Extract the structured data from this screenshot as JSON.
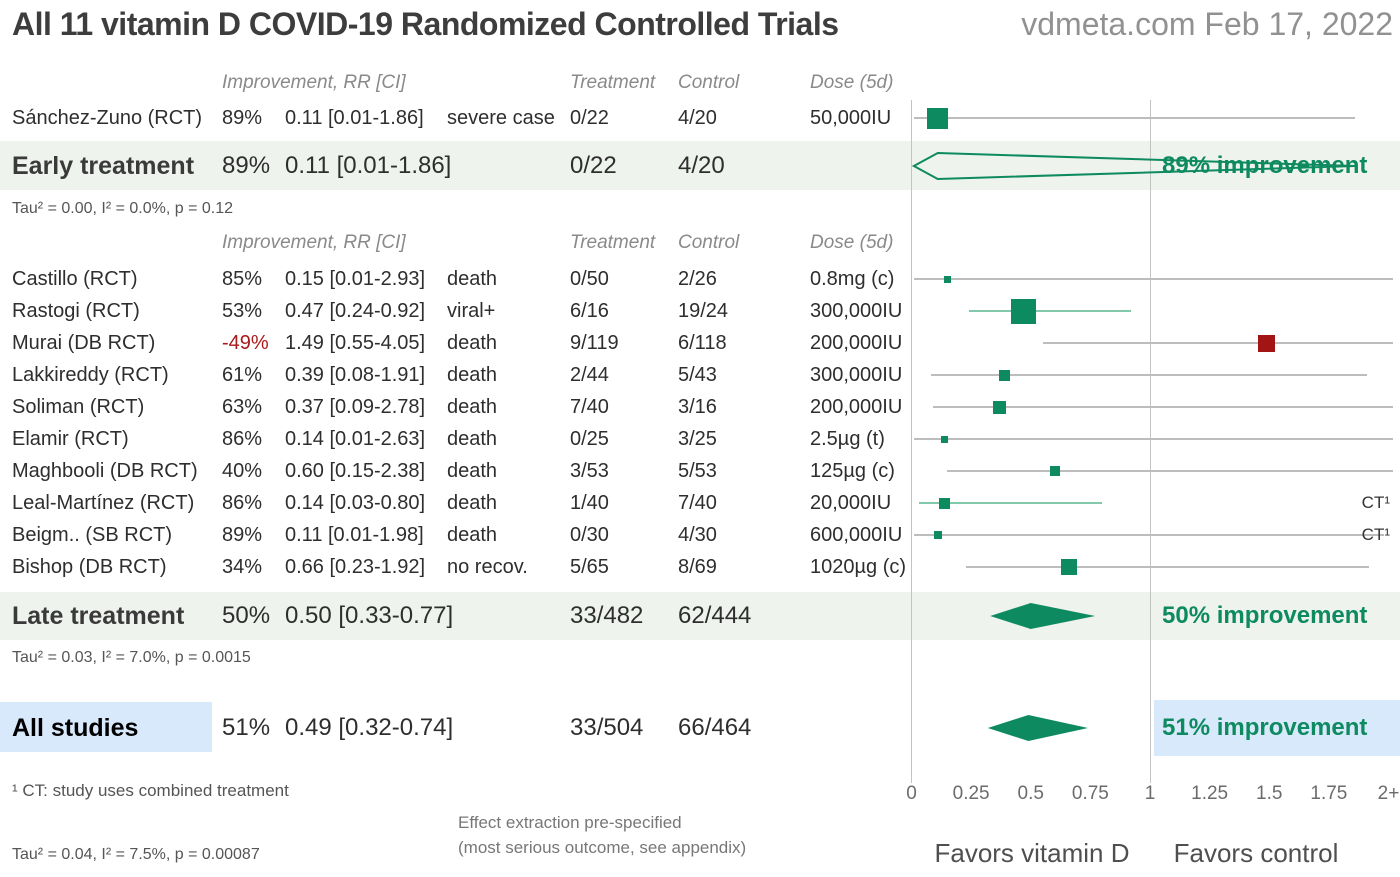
{
  "header": {
    "title": "All 11 vitamin D COVID-19 Randomized Controlled Trials",
    "source": "vdmeta.com Feb 17, 2022"
  },
  "column_headers": {
    "improvement": "Improvement, RR [CI]",
    "treatment": "Treatment",
    "control": "Control",
    "dose": "Dose (5d)"
  },
  "footnotes": {
    "ct": "¹ CT: study uses combined treatment",
    "effect_line1": "Effect extraction pre-specified",
    "effect_line2": "(most serious outcome, see appendix)",
    "tau_overall": "Tau² = 0.04, I² = 7.5%, p = 0.00087"
  },
  "colors": {
    "green": "#0d8a60",
    "red": "#a31414",
    "red_text": "#ab1a1a",
    "ci_gray": "#bdbdbd",
    "ci_green": "#82c9ab",
    "band": "#eff3ee",
    "highlight_blue": "#d8e9fb",
    "gridline": "#c3c3c3"
  },
  "chart_data": {
    "type": "forest",
    "x_range": [
      0,
      2
    ],
    "reference_line": 1,
    "ct_label": "CT¹",
    "favors_left": "Favors vitamin D",
    "favors_right": "Favors control",
    "x_ticks": [
      {
        "label": "0",
        "value": 0
      },
      {
        "label": "0.25",
        "value": 0.25
      },
      {
        "label": "0.5",
        "value": 0.5
      },
      {
        "label": "0.75",
        "value": 0.75
      },
      {
        "label": "1",
        "value": 1
      },
      {
        "label": "1.25",
        "value": 1.25
      },
      {
        "label": "1.5",
        "value": 1.5
      },
      {
        "label": "1.75",
        "value": 1.75
      },
      {
        "label": "2+",
        "value": 2
      }
    ],
    "groups": [
      {
        "name": "Early treatment",
        "tau": "Tau² = 0.00, I² = 0.0%, p = 0.12",
        "studies": [
          {
            "name": "Sánchez-Zuno (RCT)",
            "improvement": "89%",
            "negative": false,
            "rr_ci": "0.11 [0.01-1.86]",
            "outcome": "severe case",
            "treatment": "0/22",
            "control": "4/20",
            "dose": "50,000IU",
            "rr": 0.11,
            "ci_low": 0.01,
            "ci_high": 1.86,
            "marker_size": 21,
            "marker": "green",
            "ci_style": "gray",
            "ct": false
          }
        ],
        "summary": {
          "name": "Early treatment",
          "improvement": "89%",
          "rr_ci": "0.11 [0.01-1.86]",
          "treatment": "0/22",
          "control": "4/20",
          "rr": 0.11,
          "ci_low": 0.01,
          "ci_high": 1.86,
          "label": "89% improvement",
          "diamond": "outline",
          "highlighted": false
        }
      },
      {
        "name": "Late treatment",
        "tau": "Tau² = 0.03, I² = 7.0%, p = 0.0015",
        "studies": [
          {
            "name": "Castillo (RCT)",
            "improvement": "85%",
            "negative": false,
            "rr_ci": "0.15 [0.01-2.93]",
            "outcome": "death",
            "treatment": "0/50",
            "control": "2/26",
            "dose": "0.8mg (c)",
            "rr": 0.15,
            "ci_low": 0.01,
            "ci_high": 2.93,
            "marker_size": 7,
            "marker": "green",
            "ci_style": "gray",
            "ct": false
          },
          {
            "name": "Rastogi (RCT)",
            "improvement": "53%",
            "negative": false,
            "rr_ci": "0.47 [0.24-0.92]",
            "outcome": "viral+",
            "treatment": "6/16",
            "control": "19/24",
            "dose": "300,000IU",
            "rr": 0.47,
            "ci_low": 0.24,
            "ci_high": 0.92,
            "marker_size": 25,
            "marker": "green",
            "ci_style": "green",
            "ct": false
          },
          {
            "name": "Murai (DB RCT)",
            "improvement": "-49%",
            "negative": true,
            "rr_ci": "1.49 [0.55-4.05]",
            "outcome": "death",
            "treatment": "9/119",
            "control": "6/118",
            "dose": "200,000IU",
            "rr": 1.49,
            "ci_low": 0.55,
            "ci_high": 4.05,
            "marker_size": 17,
            "marker": "red",
            "ci_style": "gray",
            "ct": false
          },
          {
            "name": "Lakkireddy (RCT)",
            "improvement": "61%",
            "negative": false,
            "rr_ci": "0.39 [0.08-1.91]",
            "outcome": "death",
            "treatment": "2/44",
            "control": "5/43",
            "dose": "300,000IU",
            "rr": 0.39,
            "ci_low": 0.08,
            "ci_high": 1.91,
            "marker_size": 11,
            "marker": "green",
            "ci_style": "gray",
            "ct": false
          },
          {
            "name": "Soliman (RCT)",
            "improvement": "63%",
            "negative": false,
            "rr_ci": "0.37 [0.09-2.78]",
            "outcome": "death",
            "treatment": "7/40",
            "control": "3/16",
            "dose": "200,000IU",
            "rr": 0.37,
            "ci_low": 0.09,
            "ci_high": 2.78,
            "marker_size": 13,
            "marker": "green",
            "ci_style": "gray",
            "ct": false
          },
          {
            "name": "Elamir (RCT)",
            "improvement": "86%",
            "negative": false,
            "rr_ci": "0.14 [0.01-2.63]",
            "outcome": "death",
            "treatment": "0/25",
            "control": "3/25",
            "dose": "2.5µg (t)",
            "rr": 0.14,
            "ci_low": 0.01,
            "ci_high": 2.63,
            "marker_size": 7,
            "marker": "green",
            "ci_style": "gray",
            "ct": false
          },
          {
            "name": "Maghbooli (DB RCT)",
            "improvement": "40%",
            "negative": false,
            "rr_ci": "0.60 [0.15-2.38]",
            "outcome": "death",
            "treatment": "3/53",
            "control": "5/53",
            "dose": "125µg (c)",
            "rr": 0.6,
            "ci_low": 0.15,
            "ci_high": 2.38,
            "marker_size": 10,
            "marker": "green",
            "ci_style": "gray",
            "ct": false
          },
          {
            "name": "Leal-Martínez (RCT)",
            "improvement": "86%",
            "negative": false,
            "rr_ci": "0.14 [0.03-0.80]",
            "outcome": "death",
            "treatment": "1/40",
            "control": "7/40",
            "dose": "20,000IU",
            "rr": 0.14,
            "ci_low": 0.03,
            "ci_high": 0.8,
            "marker_size": 11,
            "marker": "green",
            "ci_style": "green",
            "ct": true
          },
          {
            "name": "Beigm.. (SB RCT)",
            "improvement": "89%",
            "negative": false,
            "rr_ci": "0.11 [0.01-1.98]",
            "outcome": "death",
            "treatment": "0/30",
            "control": "4/30",
            "dose": "600,000IU",
            "rr": 0.11,
            "ci_low": 0.01,
            "ci_high": 1.98,
            "marker_size": 8,
            "marker": "green",
            "ci_style": "gray",
            "ct": true
          },
          {
            "name": "Bishop (DB RCT)",
            "improvement": "34%",
            "negative": false,
            "rr_ci": "0.66 [0.23-1.92]",
            "outcome": "no recov.",
            "treatment": "5/65",
            "control": "8/69",
            "dose": "1020µg (c)",
            "rr": 0.66,
            "ci_low": 0.23,
            "ci_high": 1.92,
            "marker_size": 16,
            "marker": "green",
            "ci_style": "gray",
            "ct": false
          }
        ],
        "summary": {
          "name": "Late treatment",
          "improvement": "50%",
          "rr_ci": "0.50 [0.33-0.77]",
          "treatment": "33/482",
          "control": "62/444",
          "rr": 0.5,
          "ci_low": 0.33,
          "ci_high": 0.77,
          "label": "50% improvement",
          "diamond": "filled",
          "highlighted": false
        }
      },
      {
        "name": "All studies",
        "studies": [],
        "summary": {
          "name": "All studies",
          "improvement": "51%",
          "rr_ci": "0.49 [0.32-0.74]",
          "treatment": "33/504",
          "control": "66/464",
          "rr": 0.49,
          "ci_low": 0.32,
          "ci_high": 0.74,
          "label": "51% improvement",
          "diamond": "filled",
          "highlighted": true
        }
      }
    ]
  }
}
